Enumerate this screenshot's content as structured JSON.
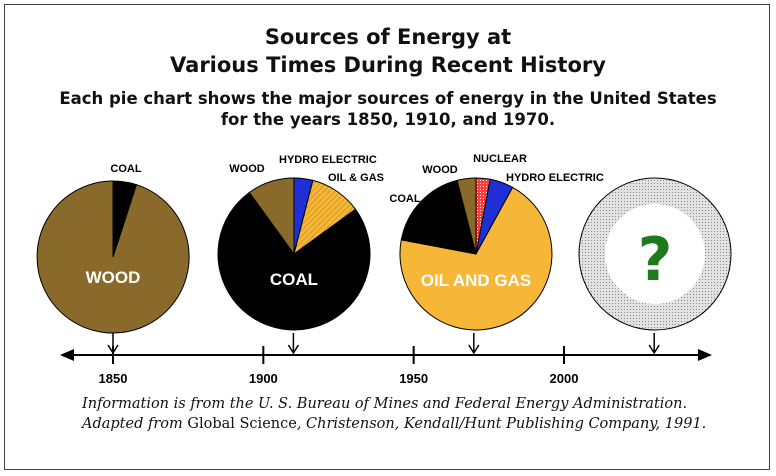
{
  "title_line1": "Sources of Energy at",
  "title_line2": "Various Times During Recent History",
  "subtitle_line1": "Each pie chart shows the major sources of energy in the United States",
  "subtitle_line2": "for the years 1850, 1910, and 1970.",
  "caption_line1": "Information is from the U. S. Bureau of Mines and Federal Energy Administration.",
  "caption_line2_prefix": "Adapted from",
  "caption_line2_source": "Global Science",
  "caption_line2_rest": ", Christenson, Kendall/Hunt Publishing Company, 1991.",
  "colors": {
    "wood": "#8a6a2a",
    "coal": "#000000",
    "hydro": "#1f2fd6",
    "oil_gas": "#f6b637",
    "nuclear": "#ee2222",
    "future_ring": "#c8c8c8",
    "question": "#1d7a1d"
  },
  "chart_data": [
    {
      "type": "pie",
      "year": 1850,
      "slices": [
        {
          "label": "COAL",
          "value": 5
        },
        {
          "label": "WOOD",
          "value": 95
        }
      ]
    },
    {
      "type": "pie",
      "year": 1910,
      "slices": [
        {
          "label": "HYDRO ELECTRIC",
          "value": 4
        },
        {
          "label": "OIL & GAS",
          "value": 11
        },
        {
          "label": "COAL",
          "value": 75
        },
        {
          "label": "WOOD",
          "value": 10
        }
      ]
    },
    {
      "type": "pie",
      "year": 1970,
      "slices": [
        {
          "label": "NUCLEAR",
          "value": 3
        },
        {
          "label": "HYDRO ELECTRIC",
          "value": 5
        },
        {
          "label": "OIL AND GAS",
          "value": 70
        },
        {
          "label": "COAL",
          "value": 18
        },
        {
          "label": "WOOD",
          "value": 4
        }
      ]
    },
    {
      "type": "pie",
      "year": null,
      "label": "?",
      "slices": []
    }
  ],
  "timeline": {
    "tick_labels": [
      "1850",
      "1900",
      "1950",
      "2000"
    ],
    "tick_years": [
      1850,
      1900,
      1950,
      2000
    ],
    "pointer_years": [
      1850,
      1910,
      1970,
      2030
    ]
  }
}
